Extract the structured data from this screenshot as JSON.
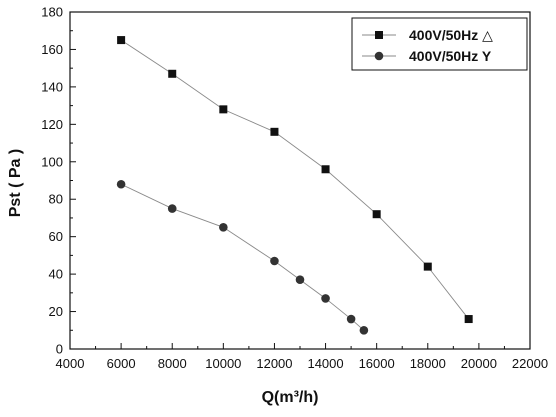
{
  "chart_data": {
    "type": "scatter",
    "xlabel": "Q(m³/h)",
    "ylabel": "Pst ( Pa )",
    "xlim": [
      4000,
      22000
    ],
    "ylim": [
      0,
      180
    ],
    "x_ticks": [
      4000,
      6000,
      8000,
      10000,
      12000,
      14000,
      16000,
      18000,
      20000,
      22000
    ],
    "y_ticks": [
      0,
      20,
      40,
      60,
      80,
      100,
      120,
      140,
      160,
      180
    ],
    "grid": false,
    "legend_position": "top-right",
    "series": [
      {
        "name": "400V/50Hz △",
        "marker": "square",
        "color": "#111111",
        "line_color": "#8a8a8a",
        "x": [
          6000,
          8000,
          10000,
          12000,
          14000,
          16000,
          18000,
          19600
        ],
        "y": [
          165,
          147,
          128,
          116,
          96,
          72,
          44,
          16
        ]
      },
      {
        "name": "400V/50Hz Y",
        "marker": "circle",
        "color": "#333333",
        "line_color": "#8a8a8a",
        "x": [
          6000,
          8000,
          10000,
          12000,
          13000,
          14000,
          15000,
          15500
        ],
        "y": [
          88,
          75,
          65,
          47,
          37,
          27,
          16,
          10
        ]
      }
    ]
  }
}
